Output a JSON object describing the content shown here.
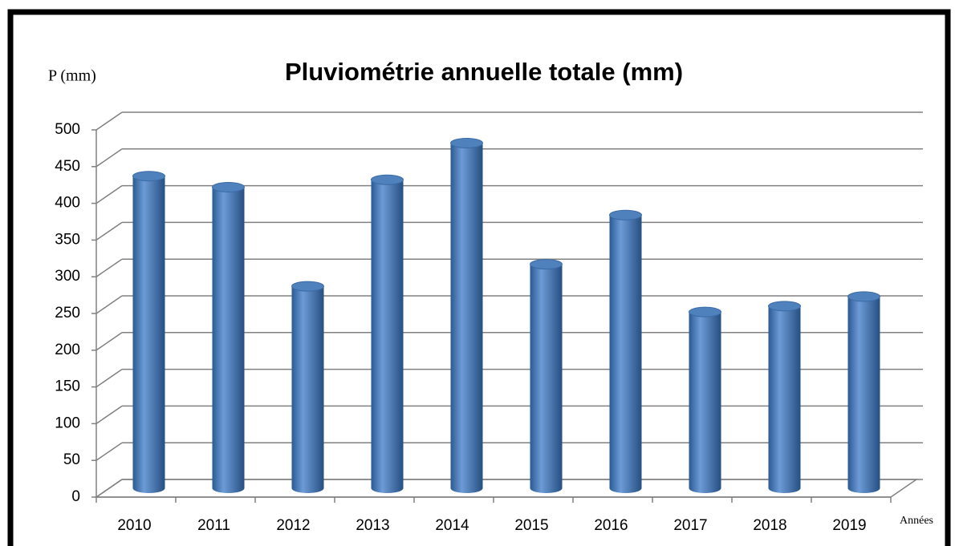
{
  "chart_data": {
    "type": "bar",
    "title": "Pluviométrie annuelle totale (mm)",
    "y_label": "P (mm)",
    "x_label": "Années",
    "categories": [
      "2010",
      "2011",
      "2012",
      "2013",
      "2014",
      "2015",
      "2016",
      "2017",
      "2018",
      "2019"
    ],
    "values": [
      425,
      410,
      275,
      420,
      470,
      305,
      372,
      240,
      248,
      261
    ],
    "color": "#4f81bd",
    "ylim": [
      0,
      500
    ],
    "yticks": [
      0,
      50,
      100,
      150,
      200,
      250,
      300,
      350,
      400,
      450,
      500
    ],
    "grid": true
  }
}
